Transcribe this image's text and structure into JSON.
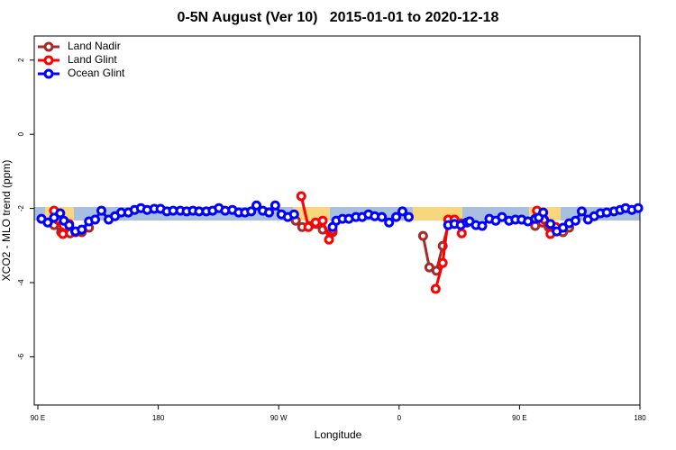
{
  "chart_data": {
    "type": "line",
    "title": "0-5N August (Ver 10)   2015-01-01 to 2020-12-18",
    "x_label": "Longitude",
    "y_label": "XCO2 - MLO trend (ppm)",
    "xlim": [
      87.3,
      540
    ],
    "ylim": [
      -7.3,
      2.65
    ],
    "xticks": [
      {
        "value": 90,
        "label": "90 E"
      },
      {
        "value": 180,
        "label": "180"
      },
      {
        "value": 270,
        "label": "90 W"
      },
      {
        "value": 360,
        "label": "0"
      },
      {
        "value": 450,
        "label": "90 E"
      },
      {
        "value": 540,
        "label": "180"
      }
    ],
    "yticks": [
      2,
      0,
      -2,
      -4,
      -6
    ],
    "legend": "top-left",
    "series": [
      {
        "name": "Land Nadir",
        "color": "#a52a2a",
        "x": [
          102.1,
          107.4,
          114.1,
          122.8,
          128.2,
          200,
          280.2,
          282.8,
          287.5,
          292.9,
          298.2,
          302.9,
          310.3,
          340,
          377.9,
          382.6,
          387.9,
          392.6,
          396.7,
          401.4,
          406.1,
          430,
          461.7,
          467.0,
          471.7,
          477.1,
          482.5,
          487.1
        ],
        "values": [
          -2.45,
          -2.64,
          -2.67,
          -2.64,
          -2.52,
          null,
          -2.21,
          -2.33,
          -2.5,
          -2.47,
          -2.42,
          -2.57,
          -2.64,
          null,
          -2.74,
          -3.59,
          -3.68,
          -3.01,
          -2.45,
          -2.35,
          -2.4,
          null,
          -2.47,
          -2.38,
          -2.5,
          -2.59,
          -2.64,
          -2.52
        ]
      },
      {
        "name": "Land Glint",
        "color": "#ff0000",
        "x": [
          102.1,
          104.7,
          108.7,
          113.4,
          118.1,
          200,
          286.9,
          292.2,
          297.6,
          302.9,
          307.6,
          310.3,
          340,
          387.3,
          392.6,
          396.7,
          401.4,
          406.8,
          430,
          463.0,
          468.4,
          473.1,
          477.1
        ],
        "values": [
          -2.06,
          -2.3,
          -2.69,
          -2.42,
          -2.64,
          null,
          -1.67,
          -2.5,
          -2.38,
          -2.33,
          -2.84,
          -2.59,
          null,
          -4.17,
          -3.47,
          -2.3,
          -2.3,
          -2.67,
          null,
          -2.06,
          -2.3,
          -2.69,
          -2.5
        ]
      },
      {
        "name": "Ocean Glint",
        "color": "#0000ff",
        "x": [
          92.7,
          97.4,
          102.1,
          106.7,
          109.4,
          113.4,
          118.1,
          122.8,
          128.2,
          132.8,
          137.5,
          142.9,
          147.6,
          152.3,
          157.6,
          162.3,
          167.0,
          171.7,
          177.0,
          181.7,
          186.4,
          191.1,
          196.5,
          201.2,
          205.9,
          210.5,
          215.9,
          220.6,
          225.3,
          230.0,
          235.4,
          240.1,
          244.8,
          249.5,
          253.4,
          258.1,
          262.8,
          267.4,
          272.1,
          276.8,
          281.5,
          295,
          310.3,
          313.0,
          317.7,
          322.4,
          327.7,
          332.4,
          337.1,
          341.8,
          347.1,
          352.5,
          357.8,
          362.5,
          367.2,
          380,
          396.7,
          401.4,
          406.1,
          410.7,
          412.7,
          417.4,
          422.1,
          427.5,
          432.2,
          436.9,
          442.2,
          446.9,
          451.6,
          456.3,
          461.7,
          464.4,
          467.7,
          473.1,
          477.8,
          482.5,
          487.1,
          491.8,
          496.5,
          501.2,
          505.8,
          510.5,
          515.2,
          520.6,
          525.2,
          529.3,
          534.0,
          538.7
        ],
        "values": [
          -2.28,
          -2.38,
          -2.25,
          -2.13,
          -2.33,
          -2.45,
          -2.62,
          -2.57,
          -2.35,
          -2.3,
          -2.06,
          -2.3,
          -2.21,
          -2.11,
          -2.11,
          -2.04,
          -1.99,
          -2.04,
          -2.01,
          -2.01,
          -2.08,
          -2.06,
          -2.06,
          -2.08,
          -2.06,
          -2.08,
          -2.08,
          -2.06,
          -1.99,
          -2.06,
          -2.04,
          -2.11,
          -2.11,
          -2.08,
          -1.92,
          -2.06,
          -2.11,
          -1.92,
          -2.16,
          -2.23,
          -2.16,
          null,
          -2.5,
          -2.33,
          -2.28,
          -2.28,
          -2.23,
          -2.23,
          -2.16,
          -2.21,
          -2.23,
          -2.38,
          -2.23,
          -2.08,
          -2.23,
          null,
          -2.45,
          -2.42,
          -2.45,
          -2.38,
          -2.35,
          -2.45,
          -2.47,
          -2.28,
          -2.33,
          -2.23,
          -2.33,
          -2.3,
          -2.3,
          -2.35,
          -2.28,
          -2.25,
          -2.11,
          -2.42,
          -2.62,
          -2.52,
          -2.4,
          -2.33,
          -2.08,
          -2.3,
          -2.21,
          -2.13,
          -2.11,
          -2.08,
          -2.04,
          -1.99,
          -2.04,
          -1.99
        ]
      }
    ]
  }
}
